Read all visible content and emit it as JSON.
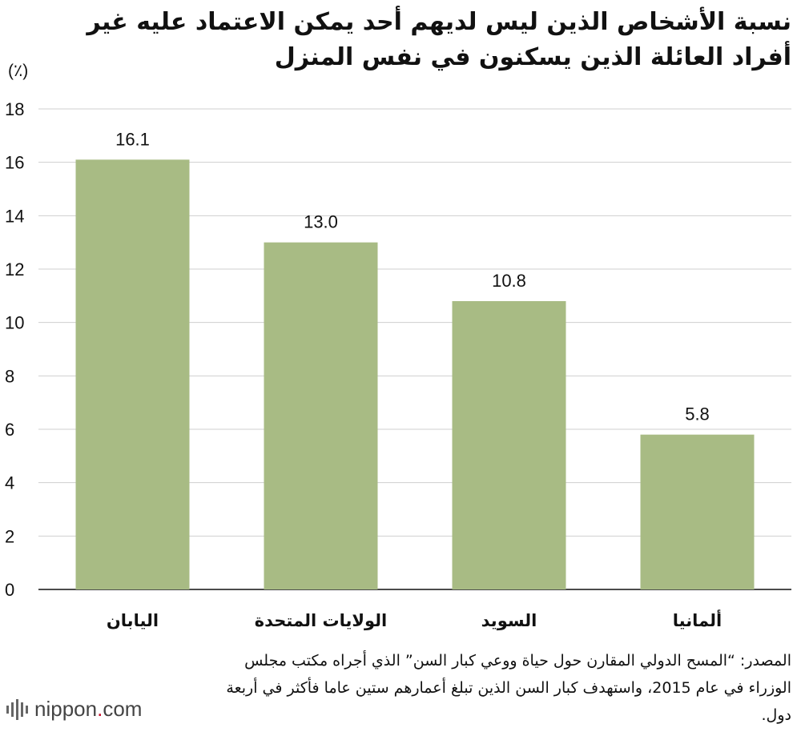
{
  "title": "نسبة الأشخاص الذين ليس لديهم أحد يمكن الاعتماد عليه غير أفراد العائلة الذين يسكنون في نفس المنزل",
  "unit": "(٪)",
  "chart_data": {
    "type": "bar",
    "title": "نسبة الأشخاص الذين ليس لديهم أحد يمكن الاعتماد عليه غير أفراد العائلة الذين يسكنون في نفس المنزل",
    "ylabel": "(٪)",
    "xlabel": "",
    "categories": [
      "اليابان",
      "الولايات المتحدة",
      "السويد",
      "ألمانيا"
    ],
    "values": [
      16.1,
      13.0,
      10.8,
      5.8
    ],
    "value_labels": [
      "16.1",
      "13.0",
      "10.8",
      "5.8"
    ],
    "ylim": [
      0,
      18
    ],
    "yticks": [
      0,
      2,
      4,
      6,
      8,
      10,
      12,
      14,
      16,
      18
    ],
    "grid": true,
    "legend": "none",
    "bar_color": "#a8bb84"
  },
  "source": "المصدر: “المسح الدولي المقارن حول حياة ووعي كبار السن” الذي أجراه مكتب مجلس الوزراء في عام 2015، واستهدف كبار السن الذين تبلغ أعمارهم ستين عاما فأكثر في أربعة دول.",
  "brand": {
    "name": "nippon",
    "dot": ".",
    "tld": "com",
    "accent": "#c8102e"
  }
}
